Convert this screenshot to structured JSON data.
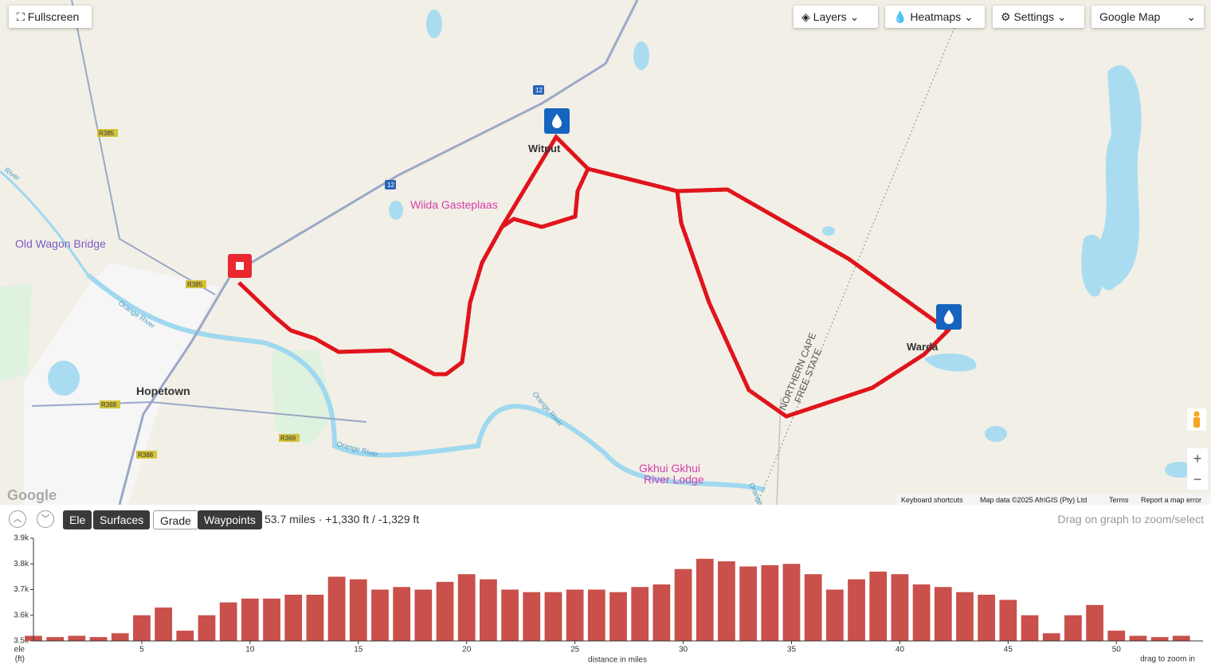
{
  "toolbar": {
    "fullscreen": "Fullscreen",
    "layers": "Layers",
    "heatmaps": "Heatmaps",
    "settings": "Settings",
    "map_type": "Google Map"
  },
  "map": {
    "places": {
      "witput": "Witput",
      "wiida": "Wiida Gasteplaas",
      "old_wagon_bridge": "Old Wagon Bridge",
      "hopetown": "Hopetown",
      "warda": "Warda",
      "gkhui_1": "Gkhui Gkhui",
      "gkhui_2": "River Lodge"
    },
    "border_1": "NORTHERN CAPE",
    "border_2": "FREE STATE",
    "river_labels": [
      "Orange River",
      "Orange River",
      "Orange River",
      "River",
      "Orange"
    ],
    "road_shields": [
      "R385",
      "R385",
      "12",
      "12",
      "R369",
      "R369",
      "R388"
    ],
    "footer": {
      "logo": "Google",
      "shortcuts": "Keyboard shortcuts",
      "map_data": "Map data ©2025 AfriGIS (Pty) Ltd",
      "terms": "Terms",
      "report": "Report a map error"
    },
    "zoom_in": "+",
    "zoom_out": "−"
  },
  "elevation_panel": {
    "buttons": [
      "Ele",
      "Surfaces",
      "Grade",
      "Waypoints"
    ],
    "summary": "53.7 miles · +1,330 ft / -1,329 ft",
    "hint": "Drag on graph to zoom/select"
  },
  "chart_data": {
    "type": "bar",
    "y_label": "ele",
    "y_unit": "(ft)",
    "x_label": "distance in miles",
    "note": "drag to zoom in",
    "color": "#c9504b",
    "x": [
      0,
      1,
      2,
      3,
      4,
      5,
      6,
      7,
      8,
      9,
      10,
      11,
      12,
      13,
      14,
      15,
      16,
      17,
      18,
      19,
      20,
      21,
      22,
      23,
      24,
      25,
      26,
      27,
      28,
      29,
      30,
      31,
      32,
      33,
      34,
      35,
      36,
      37,
      38,
      39,
      40,
      41,
      42,
      43,
      44,
      45,
      46,
      47,
      48,
      49,
      50,
      51,
      52,
      53
    ],
    "values": [
      3520,
      3515,
      3520,
      3515,
      3530,
      3600,
      3630,
      3540,
      3600,
      3650,
      3665,
      3665,
      3680,
      3680,
      3750,
      3740,
      3700,
      3710,
      3700,
      3730,
      3760,
      3740,
      3700,
      3690,
      3690,
      3700,
      3700,
      3690,
      3710,
      3720,
      3780,
      3820,
      3810,
      3790,
      3795,
      3800,
      3760,
      3700,
      3740,
      3770,
      3760,
      3720,
      3710,
      3690,
      3680,
      3660,
      3600,
      3530,
      3600,
      3640,
      3540,
      3520,
      3515,
      3520
    ],
    "xlim": [
      0,
      54
    ],
    "ylim": [
      3500,
      3900
    ],
    "xticks": [
      5,
      10,
      15,
      20,
      25,
      30,
      35,
      40,
      45,
      50
    ],
    "yticks": [
      {
        "value": 3500,
        "label": "3.5k"
      },
      {
        "value": 3600,
        "label": "3.6k"
      },
      {
        "value": 3700,
        "label": "3.7k"
      },
      {
        "value": 3800,
        "label": "3.8k"
      },
      {
        "value": 3900,
        "label": "3.9k"
      }
    ]
  }
}
